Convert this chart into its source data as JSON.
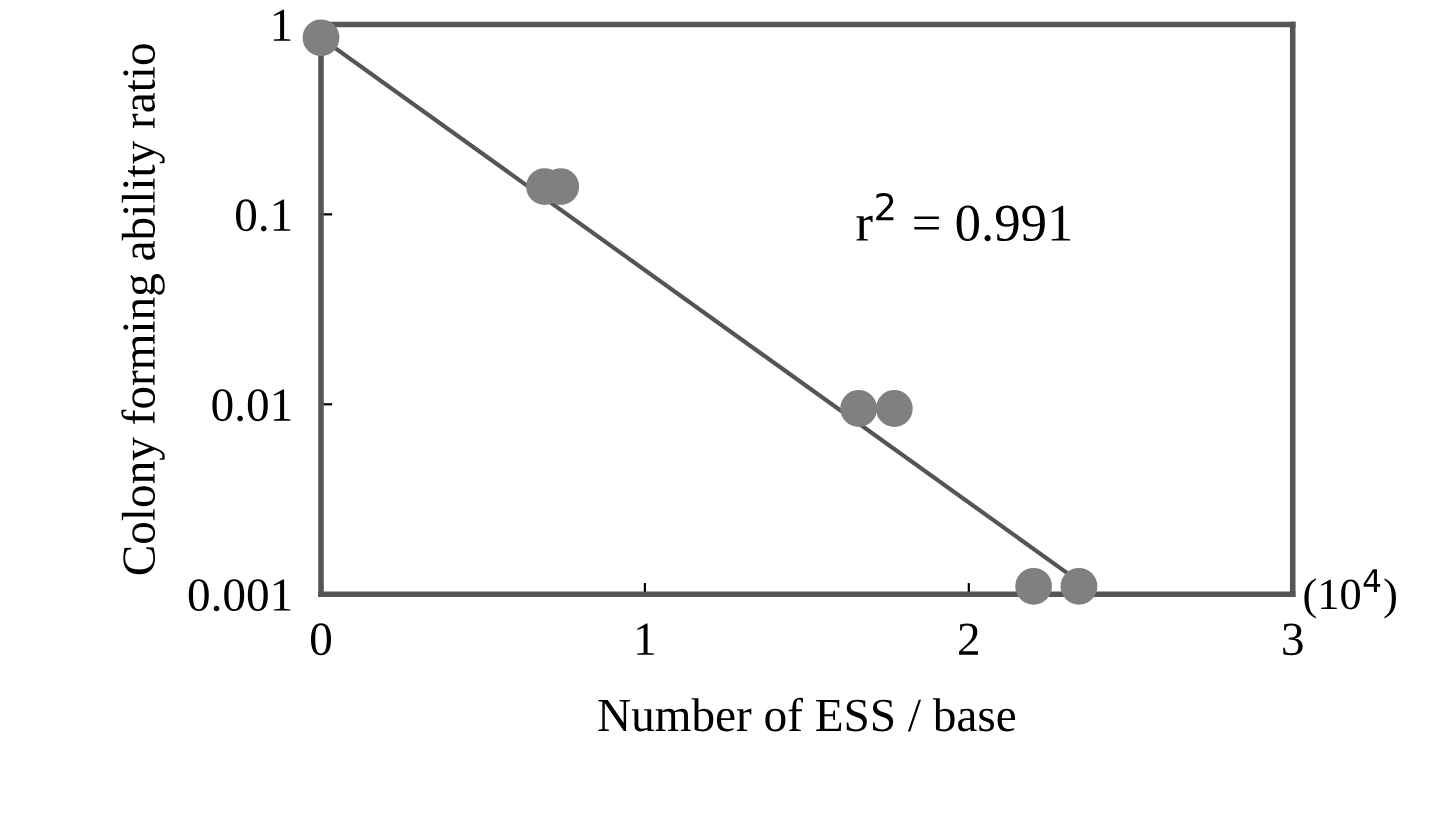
{
  "chart_data": {
    "type": "scatter",
    "xlabel": "Number of ESS / base",
    "ylabel": "Colony forming ability ratio",
    "log": "y",
    "xlim": [
      0,
      3
    ],
    "xticks": [
      0,
      1,
      2,
      3
    ],
    "ylim": [
      0.001,
      1
    ],
    "yticks": [
      0.001,
      0.01,
      0.1,
      1
    ],
    "grid": false,
    "legend": false,
    "series": [
      {
        "marker": "circle",
        "color": "#808080",
        "x": [
          0,
          0.69,
          0.74,
          1.66,
          1.77,
          2.2,
          2.34
        ],
        "values": [
          0.85,
          0.14,
          0.14,
          0.0095,
          0.0095,
          0.0011,
          0.0011
        ]
      },
      {
        "type": "line",
        "marker": "none",
        "color": "#555555",
        "line_style": "solid",
        "x": [
          0,
          2.33
        ],
        "values": [
          0.85,
          0.0012
        ]
      }
    ],
    "annotations": [
      "r$^{2}$ = 0.991",
      "(10$^{4}$)"
    ]
  }
}
